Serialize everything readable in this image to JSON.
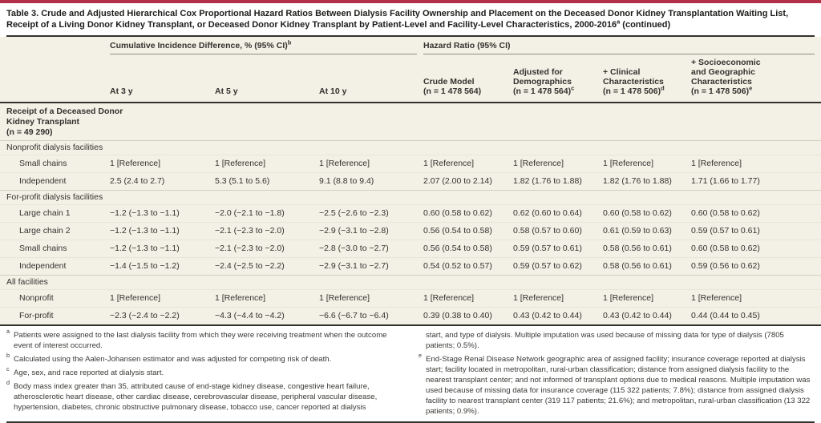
{
  "colors": {
    "accent_bar": "#b23148",
    "table_bg": "#f3f1e6",
    "rule_dark": "#33322d"
  },
  "title": {
    "text": "Table 3. Crude and Adjusted Hierarchical Cox Proportional Hazard Ratios Between Dialysis Facility Ownership and Placement on the Deceased Donor Kidney Transplantation Waiting List, Receipt of a Living Donor Kidney Transplant, or Deceased Donor Kidney Transplant by Patient-Level and Facility-Level Characteristics, 2000-2016",
    "sup": "a",
    "suffix": " (continued)"
  },
  "header": {
    "group_cid": {
      "label": "Cumulative Incidence Difference, % (95% CI)",
      "sup": "b"
    },
    "group_hr": {
      "label": "Hazard Ratio (95% CI)"
    },
    "cid_cols": [
      "At 3 y",
      "At 5 y",
      "At 10 y"
    ],
    "hr_cols": [
      {
        "lines": [
          "Crude Model",
          "(n = 1 478 564)"
        ],
        "sup": ""
      },
      {
        "lines": [
          "Adjusted for",
          "Demographics",
          "(n = 1 478 564)"
        ],
        "sup": "c"
      },
      {
        "lines": [
          "+ Clinical",
          "Characteristics",
          "(n = 1 478 506)"
        ],
        "sup": "d"
      },
      {
        "lines": [
          "+ Socioeconomic",
          "and Geographic",
          "Characteristics",
          "(n = 1 478 506)"
        ],
        "sup": "e"
      }
    ]
  },
  "table": {
    "rows": [
      {
        "type": "section",
        "label_lines": [
          "Receipt of a Deceased Donor",
          "Kidney Transplant",
          "(n = 49 290)"
        ],
        "cells": []
      },
      {
        "type": "group",
        "label": "Nonprofit dialysis facilities",
        "cells": []
      },
      {
        "type": "data",
        "label": "Small chains",
        "cells": [
          "1 [Reference]",
          "1 [Reference]",
          "1 [Reference]",
          "1 [Reference]",
          "1 [Reference]",
          "1 [Reference]",
          "1 [Reference]"
        ]
      },
      {
        "type": "data",
        "label": "Independent",
        "cells": [
          "2.5 (2.4 to 2.7)",
          "5.3 (5.1 to 5.6)",
          "9.1 (8.8 to 9.4)",
          "2.07 (2.00 to 2.14)",
          "1.82 (1.76 to 1.88)",
          "1.82 (1.76 to 1.88)",
          "1.71 (1.66 to 1.77)"
        ]
      },
      {
        "type": "group",
        "label": "For-profit dialysis facilities",
        "cells": []
      },
      {
        "type": "data",
        "label": "Large chain 1",
        "cells": [
          "−1.2 (−1.3 to −1.1)",
          "−2.0 (−2.1 to −1.8)",
          "−2.5 (−2.6 to −2.3)",
          "0.60 (0.58 to 0.62)",
          "0.62 (0.60 to 0.64)",
          "0.60 (0.58 to 0.62)",
          "0.60 (0.58 to 0.62)"
        ]
      },
      {
        "type": "data",
        "label": "Large chain 2",
        "cells": [
          "−1.2 (−1.3 to −1.1)",
          "−2.1 (−2.3 to −2.0)",
          "−2.9 (−3.1 to −2.8)",
          "0.56 (0.54 to 0.58)",
          "0.58 (0.57 to 0.60)",
          "0.61 (0.59 to 0.63)",
          "0.59 (0.57 to 0.61)"
        ]
      },
      {
        "type": "data",
        "label": "Small chains",
        "cells": [
          "−1.2 (−1.3 to −1.1)",
          "−2.1 (−2.3 to −2.0)",
          "−2.8 (−3.0 to −2.7)",
          "0.56 (0.54 to 0.58)",
          "0.59 (0.57 to 0.61)",
          "0.58 (0.56 to 0.61)",
          "0.60 (0.58 to 0.62)"
        ]
      },
      {
        "type": "data",
        "label": "Independent",
        "cells": [
          "−1.4 (−1.5 to −1.2)",
          "−2.4 (−2.5 to −2.2)",
          "−2.9 (−3.1 to −2.7)",
          "0.54 (0.52 to 0.57)",
          "0.59 (0.57 to 0.62)",
          "0.58 (0.56 to 0.61)",
          "0.59 (0.56 to 0.62)"
        ]
      },
      {
        "type": "group",
        "label": "All facilities",
        "cells": []
      },
      {
        "type": "data",
        "label": "Nonprofit",
        "cells": [
          "1 [Reference]",
          "1 [Reference]",
          "1 [Reference]",
          "1 [Reference]",
          "1 [Reference]",
          "1 [Reference]",
          "1 [Reference]"
        ]
      },
      {
        "type": "data",
        "label": "For-profit",
        "cells": [
          "−2.3 (−2.4 to −2.2)",
          "−4.3 (−4.4 to −4.2)",
          "−6.6 (−6.7 to −6.4)",
          "0.39 (0.38 to 0.40)",
          "0.43 (0.42 to 0.44)",
          "0.43 (0.42 to 0.44)",
          "0.44 (0.44 to 0.45)"
        ]
      }
    ]
  },
  "footnotes": {
    "left": [
      {
        "sup": "a",
        "text": "Patients were assigned to the last dialysis facility from which they were receiving treatment when the outcome event of interest occurred."
      },
      {
        "sup": "b",
        "text": "Calculated using the Aalen-Johansen estimator and was adjusted for competing risk of death."
      },
      {
        "sup": "c",
        "text": "Age, sex, and race reported at dialysis start."
      },
      {
        "sup": "d",
        "text": "Body mass index greater than 35, attributed cause of end-stage kidney disease, congestive heart failure, atherosclerotic heart disease, other cardiac disease, cerebrovascular disease, peripheral vascular disease, hypertension, diabetes, chronic obstructive pulmonary disease, tobacco use, cancer reported at dialysis"
      }
    ],
    "right": [
      {
        "sup": "",
        "text": "start, and type of dialysis. Multiple imputation was used because of missing data for type of dialysis (7805 patients; 0.5%)."
      },
      {
        "sup": "e",
        "text": "End-Stage Renal Disease Network geographic area of assigned facility; insurance coverage reported at dialysis start; facility located in metropolitan, rural-urban classification; distance from assigned dialysis facility to the nearest transplant center; and not informed of transplant options due to medical reasons. Multiple imputation was used because of missing data for insurance coverage (115 322 patients; 7.8%); distance from assigned dialysis facility to nearest transplant center (319 117 patients; 21.6%); and metropolitan, rural-urban classification (13 322 patients; 0.9%)."
      }
    ]
  }
}
